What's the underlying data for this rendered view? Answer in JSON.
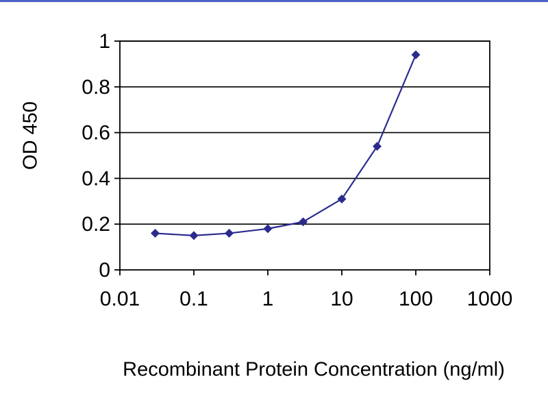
{
  "page": {
    "background": "#ffffff",
    "top_border_color": "#4d63c8"
  },
  "chart_data": {
    "type": "line",
    "title": "",
    "xlabel": "Recombinant Protein Concentration (ng/ml)",
    "ylabel": "OD 450",
    "xscale": "log",
    "xlim": [
      0.01,
      1000
    ],
    "ylim": [
      0,
      1
    ],
    "x": [
      0.03,
      0.1,
      0.3,
      1,
      3,
      10,
      30,
      100
    ],
    "y": [
      0.16,
      0.15,
      0.16,
      0.18,
      0.21,
      0.31,
      0.54,
      0.94
    ],
    "xticks": {
      "values": [
        0.01,
        0.1,
        1,
        10,
        100,
        1000
      ],
      "labels": [
        "0.01",
        "0.1",
        "1",
        "10",
        "100",
        "1000"
      ]
    },
    "yticks": {
      "values": [
        0,
        0.2,
        0.4,
        0.6,
        0.8,
        1
      ],
      "labels": [
        "0",
        "0.2",
        "0.4",
        "0.6",
        "0.8",
        "1"
      ]
    },
    "grid": "horizontal",
    "legend": "none",
    "line_color": "#2b2b8e",
    "marker": "diamond",
    "marker_color": "#2b2b8e",
    "axis_color": "#000000",
    "gridline_color": "#000000",
    "text_color": "#000000"
  }
}
